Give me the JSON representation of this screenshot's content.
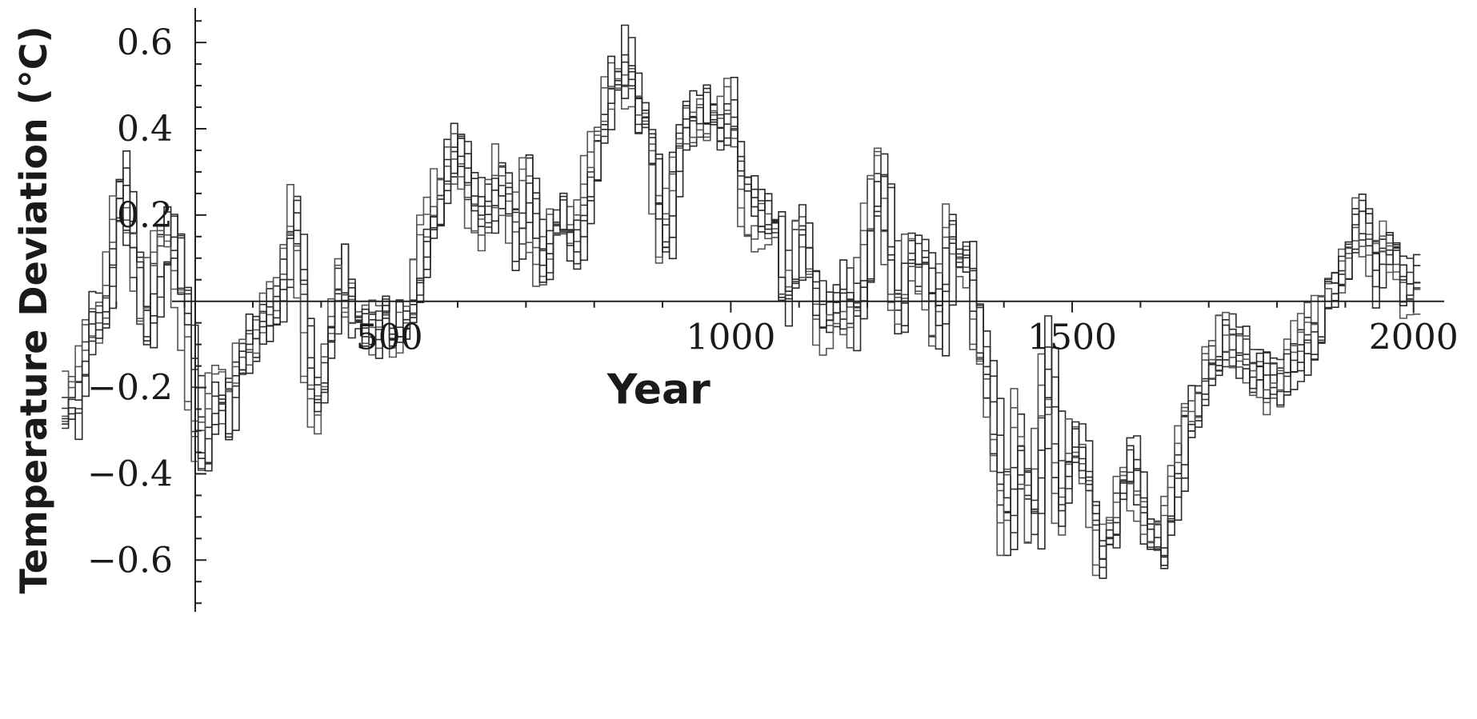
{
  "chart_data": {
    "type": "line",
    "title": "",
    "xlabel": "Year",
    "ylabel": "Temperature Deviation (°C)",
    "xlim": [
      0,
      2080
    ],
    "ylim": [
      -0.72,
      0.68
    ],
    "x_ticks": [
      500,
      1000,
      1500,
      2000
    ],
    "x_tick_labels": [
      "500",
      "1000",
      "1500",
      "2000"
    ],
    "y_ticks": [
      0.6,
      0.4,
      0.2,
      -0.2,
      -0.4,
      -0.6
    ],
    "y_tick_labels": [
      "0.6",
      "0.4",
      "0.2",
      "−0.2",
      "−0.4",
      "−0.6"
    ],
    "grid": false,
    "step_years": 10,
    "line_color": "#2a2a2a",
    "series_count": 8,
    "x": [
      20,
      40,
      60,
      80,
      100,
      120,
      140,
      160,
      180,
      200,
      220,
      240,
      260,
      280,
      300,
      320,
      340,
      360,
      380,
      400,
      420,
      440,
      460,
      480,
      500,
      520,
      540,
      560,
      580,
      600,
      620,
      640,
      660,
      680,
      700,
      720,
      740,
      760,
      780,
      800,
      820,
      840,
      860,
      880,
      900,
      920,
      940,
      960,
      980,
      1000,
      1020,
      1040,
      1060,
      1080,
      1100,
      1120,
      1140,
      1160,
      1180,
      1200,
      1220,
      1240,
      1260,
      1280,
      1300,
      1320,
      1340,
      1360,
      1380,
      1400,
      1420,
      1440,
      1460,
      1480,
      1500,
      1520,
      1540,
      1560,
      1580,
      1600,
      1620,
      1640,
      1660,
      1680,
      1700,
      1720,
      1740,
      1760,
      1780,
      1800,
      1820,
      1840,
      1860,
      1880,
      1900,
      1920,
      1940,
      1960,
      1980,
      2000
    ],
    "values": [
      -0.26,
      -0.22,
      -0.05,
      -0.04,
      0.28,
      0.15,
      -0.07,
      0.12,
      0.15,
      -0.05,
      -0.38,
      -0.22,
      -0.24,
      -0.12,
      -0.08,
      -0.04,
      0.04,
      0.22,
      -0.22,
      -0.22,
      0.08,
      -0.02,
      -0.06,
      -0.08,
      -0.06,
      -0.05,
      0.05,
      0.2,
      0.3,
      0.35,
      0.22,
      0.18,
      0.3,
      0.12,
      0.3,
      0.05,
      0.22,
      0.1,
      0.2,
      0.35,
      0.5,
      0.56,
      0.45,
      0.38,
      0.1,
      0.4,
      0.42,
      0.45,
      0.4,
      0.45,
      0.22,
      0.2,
      0.18,
      -0.02,
      0.2,
      0.0,
      -0.06,
      0.02,
      -0.05,
      0.15,
      0.3,
      -0.05,
      0.12,
      0.08,
      -0.08,
      0.18,
      0.12,
      -0.08,
      -0.28,
      -0.55,
      -0.28,
      -0.58,
      -0.08,
      -0.52,
      -0.3,
      -0.42,
      -0.62,
      -0.5,
      -0.35,
      -0.5,
      -0.58,
      -0.52,
      -0.28,
      -0.25,
      -0.15,
      -0.08,
      -0.12,
      -0.15,
      -0.2,
      -0.18,
      -0.12,
      -0.08,
      -0.05,
      0.02,
      0.1,
      0.22,
      0.06,
      0.15,
      0.02,
      0.05
    ]
  }
}
